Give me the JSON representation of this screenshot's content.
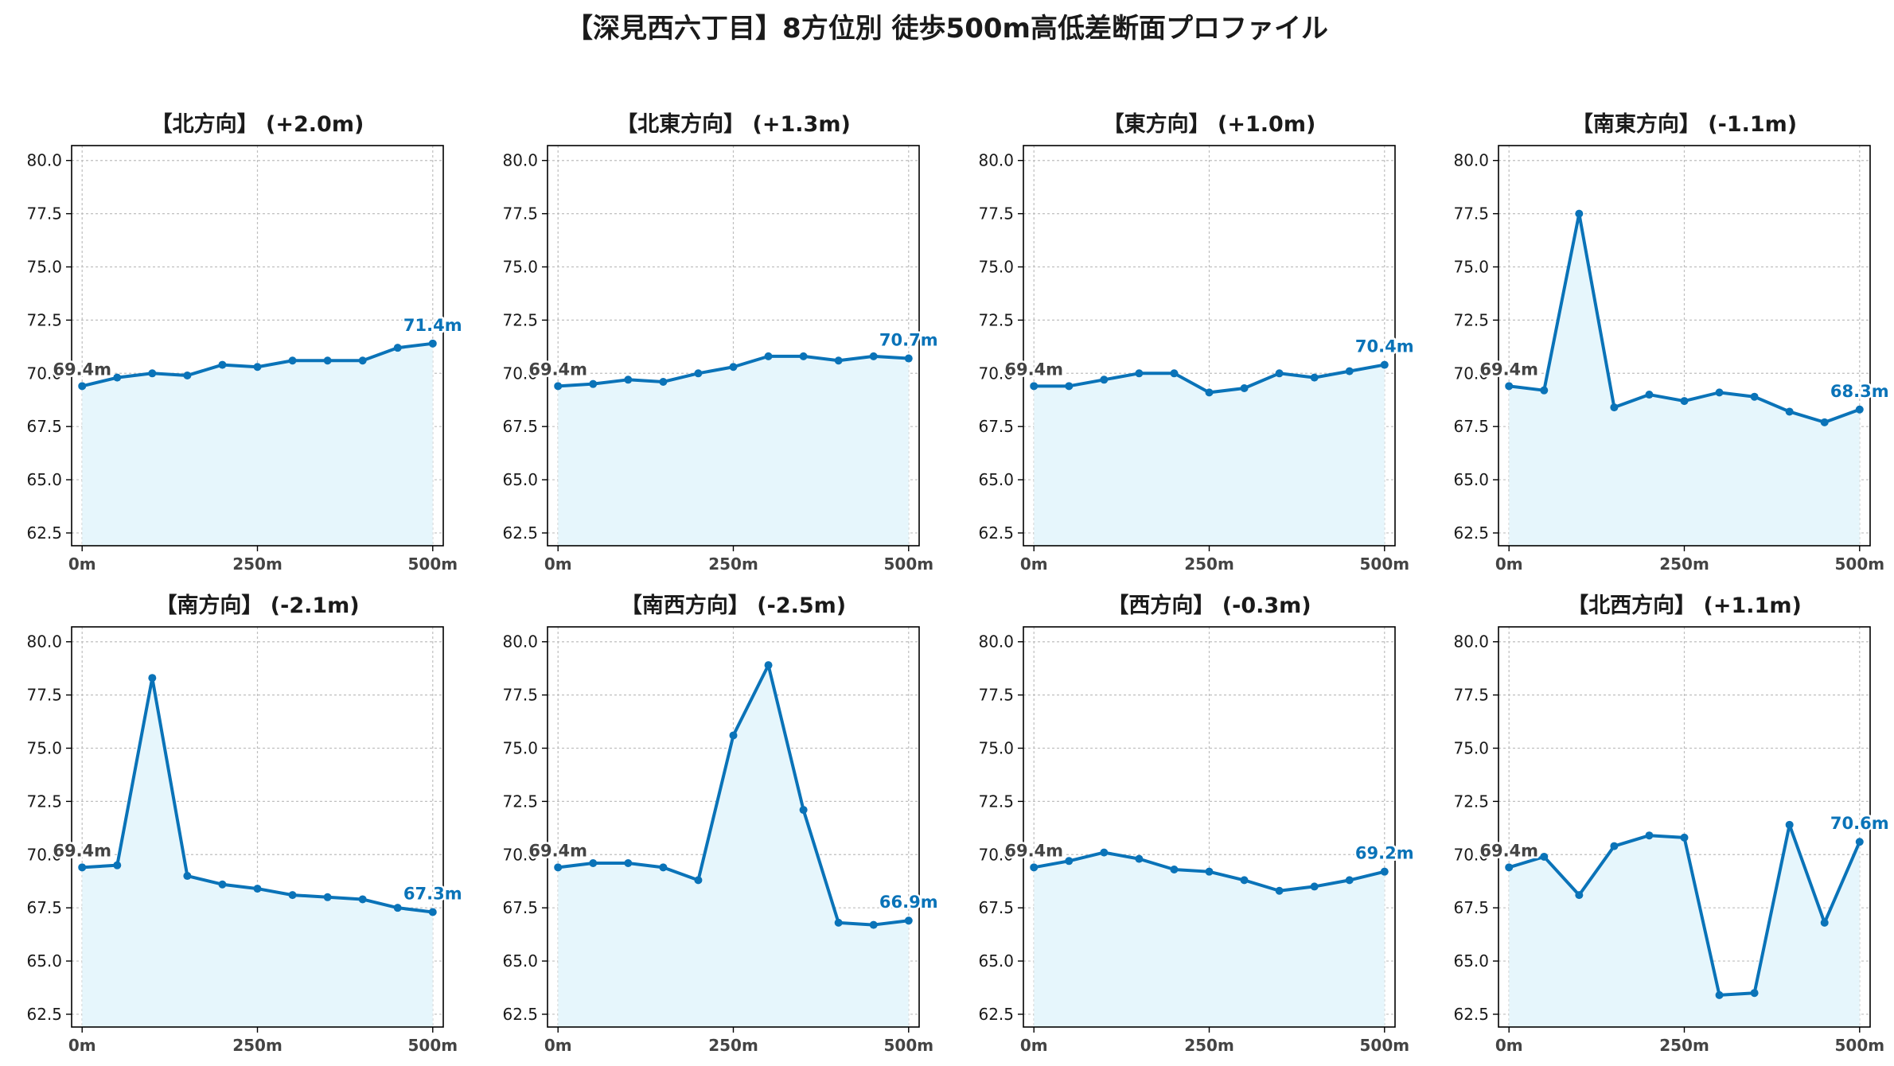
{
  "title": "【深見西六丁目】8方位別 徒歩500m高低差断面プロファイル",
  "colors": {
    "line": "#0a73b8",
    "fill": "#e6f6fc",
    "grid": "#bfbfbf",
    "axis": "#000000",
    "start_label": "#444444",
    "end_label": "#0a73b8"
  },
  "chart_data": [
    {
      "type": "area",
      "title": "【北方向】 (+2.0m)",
      "x": [
        0,
        50,
        100,
        150,
        200,
        250,
        300,
        350,
        400,
        450,
        500
      ],
      "values": [
        69.4,
        69.8,
        70.0,
        69.9,
        70.4,
        70.3,
        70.6,
        70.6,
        70.6,
        71.2,
        71.4
      ],
      "start_label": "69.4m",
      "end_label": "71.4m",
      "xticks": [
        "0m",
        "250m",
        "500m"
      ],
      "xtick_values": [
        0,
        250,
        500
      ],
      "yticks": [
        "62.5",
        "65.0",
        "67.5",
        "70.0",
        "72.5",
        "75.0",
        "77.5",
        "80.0"
      ],
      "ytick_values": [
        62.5,
        65.0,
        67.5,
        70.0,
        72.5,
        75.0,
        77.5,
        80.0
      ],
      "xlim": [
        -15,
        515
      ],
      "ylim": [
        61.9,
        80.7
      ],
      "grid": true
    },
    {
      "type": "area",
      "title": "【北東方向】 (+1.3m)",
      "x": [
        0,
        50,
        100,
        150,
        200,
        250,
        300,
        350,
        400,
        450,
        500
      ],
      "values": [
        69.4,
        69.5,
        69.7,
        69.6,
        70.0,
        70.3,
        70.8,
        70.8,
        70.6,
        70.8,
        70.7
      ],
      "start_label": "69.4m",
      "end_label": "70.7m",
      "xticks": [
        "0m",
        "250m",
        "500m"
      ],
      "xtick_values": [
        0,
        250,
        500
      ],
      "yticks": [
        "62.5",
        "65.0",
        "67.5",
        "70.0",
        "72.5",
        "75.0",
        "77.5",
        "80.0"
      ],
      "ytick_values": [
        62.5,
        65.0,
        67.5,
        70.0,
        72.5,
        75.0,
        77.5,
        80.0
      ],
      "xlim": [
        -15,
        515
      ],
      "ylim": [
        61.9,
        80.7
      ],
      "grid": true
    },
    {
      "type": "area",
      "title": "【東方向】 (+1.0m)",
      "x": [
        0,
        50,
        100,
        150,
        200,
        250,
        300,
        350,
        400,
        450,
        500
      ],
      "values": [
        69.4,
        69.4,
        69.7,
        70.0,
        70.0,
        69.1,
        69.3,
        70.0,
        69.8,
        70.1,
        70.4
      ],
      "start_label": "69.4m",
      "end_label": "70.4m",
      "xticks": [
        "0m",
        "250m",
        "500m"
      ],
      "xtick_values": [
        0,
        250,
        500
      ],
      "yticks": [
        "62.5",
        "65.0",
        "67.5",
        "70.0",
        "72.5",
        "75.0",
        "77.5",
        "80.0"
      ],
      "ytick_values": [
        62.5,
        65.0,
        67.5,
        70.0,
        72.5,
        75.0,
        77.5,
        80.0
      ],
      "xlim": [
        -15,
        515
      ],
      "ylim": [
        61.9,
        80.7
      ],
      "grid": true
    },
    {
      "type": "area",
      "title": "【南東方向】 (-1.1m)",
      "x": [
        0,
        50,
        100,
        150,
        200,
        250,
        300,
        350,
        400,
        450,
        500
      ],
      "values": [
        69.4,
        69.2,
        77.5,
        68.4,
        69.0,
        68.7,
        69.1,
        68.9,
        68.2,
        67.7,
        68.3
      ],
      "start_label": "69.4m",
      "end_label": "68.3m",
      "xticks": [
        "0m",
        "250m",
        "500m"
      ],
      "xtick_values": [
        0,
        250,
        500
      ],
      "yticks": [
        "62.5",
        "65.0",
        "67.5",
        "70.0",
        "72.5",
        "75.0",
        "77.5",
        "80.0"
      ],
      "ytick_values": [
        62.5,
        65.0,
        67.5,
        70.0,
        72.5,
        75.0,
        77.5,
        80.0
      ],
      "xlim": [
        -15,
        515
      ],
      "ylim": [
        61.9,
        80.7
      ],
      "grid": true
    },
    {
      "type": "area",
      "title": "【南方向】 (-2.1m)",
      "x": [
        0,
        50,
        100,
        150,
        200,
        250,
        300,
        350,
        400,
        450,
        500
      ],
      "values": [
        69.4,
        69.5,
        78.3,
        69.0,
        68.6,
        68.4,
        68.1,
        68.0,
        67.9,
        67.5,
        67.3
      ],
      "start_label": "69.4m",
      "end_label": "67.3m",
      "xticks": [
        "0m",
        "250m",
        "500m"
      ],
      "xtick_values": [
        0,
        250,
        500
      ],
      "yticks": [
        "62.5",
        "65.0",
        "67.5",
        "70.0",
        "72.5",
        "75.0",
        "77.5",
        "80.0"
      ],
      "ytick_values": [
        62.5,
        65.0,
        67.5,
        70.0,
        72.5,
        75.0,
        77.5,
        80.0
      ],
      "xlim": [
        -15,
        515
      ],
      "ylim": [
        61.9,
        80.7
      ],
      "grid": true
    },
    {
      "type": "area",
      "title": "【南西方向】 (-2.5m)",
      "x": [
        0,
        50,
        100,
        150,
        200,
        250,
        300,
        350,
        400,
        450,
        500
      ],
      "values": [
        69.4,
        69.6,
        69.6,
        69.4,
        68.8,
        75.6,
        78.9,
        72.1,
        66.8,
        66.7,
        66.9
      ],
      "start_label": "69.4m",
      "end_label": "66.9m",
      "xticks": [
        "0m",
        "250m",
        "500m"
      ],
      "xtick_values": [
        0,
        250,
        500
      ],
      "yticks": [
        "62.5",
        "65.0",
        "67.5",
        "70.0",
        "72.5",
        "75.0",
        "77.5",
        "80.0"
      ],
      "ytick_values": [
        62.5,
        65.0,
        67.5,
        70.0,
        72.5,
        75.0,
        77.5,
        80.0
      ],
      "xlim": [
        -15,
        515
      ],
      "ylim": [
        61.9,
        80.7
      ],
      "grid": true
    },
    {
      "type": "area",
      "title": "【西方向】 (-0.3m)",
      "x": [
        0,
        50,
        100,
        150,
        200,
        250,
        300,
        350,
        400,
        450,
        500
      ],
      "values": [
        69.4,
        69.7,
        70.1,
        69.8,
        69.3,
        69.2,
        68.8,
        68.3,
        68.5,
        68.8,
        69.2
      ],
      "start_label": "69.4m",
      "end_label": "69.2m",
      "xticks": [
        "0m",
        "250m",
        "500m"
      ],
      "xtick_values": [
        0,
        250,
        500
      ],
      "yticks": [
        "62.5",
        "65.0",
        "67.5",
        "70.0",
        "72.5",
        "75.0",
        "77.5",
        "80.0"
      ],
      "ytick_values": [
        62.5,
        65.0,
        67.5,
        70.0,
        72.5,
        75.0,
        77.5,
        80.0
      ],
      "xlim": [
        -15,
        515
      ],
      "ylim": [
        61.9,
        80.7
      ],
      "grid": true
    },
    {
      "type": "area",
      "title": "【北西方向】 (+1.1m)",
      "x": [
        0,
        50,
        100,
        150,
        200,
        250,
        300,
        350,
        400,
        450,
        500
      ],
      "values": [
        69.4,
        69.9,
        68.1,
        70.4,
        70.9,
        70.8,
        63.4,
        63.5,
        71.4,
        66.8,
        70.6
      ],
      "start_label": "69.4m",
      "end_label": "70.6m",
      "xticks": [
        "0m",
        "250m",
        "500m"
      ],
      "xtick_values": [
        0,
        250,
        500
      ],
      "yticks": [
        "62.5",
        "65.0",
        "67.5",
        "70.0",
        "72.5",
        "75.0",
        "77.5",
        "80.0"
      ],
      "ytick_values": [
        62.5,
        65.0,
        67.5,
        70.0,
        72.5,
        75.0,
        77.5,
        80.0
      ],
      "xlim": [
        -15,
        515
      ],
      "ylim": [
        61.9,
        80.7
      ],
      "grid": true
    }
  ]
}
